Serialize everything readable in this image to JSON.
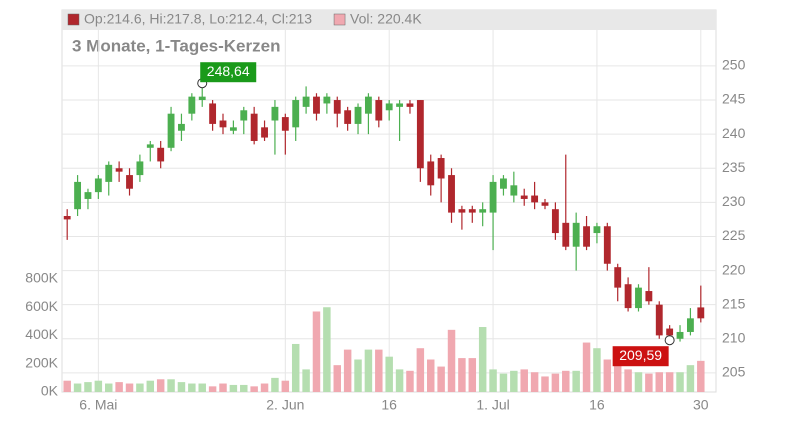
{
  "chart_data": {
    "type": "candlestick",
    "subtitle": "3 Monate, 1-Tages-Kerzen",
    "legend": [
      {
        "text": "Op:214.6, Hi:217.8, Lo:212.4, Cl:213",
        "color": "#b0272d"
      },
      {
        "text": "Vol: 220.4K",
        "color": "#f0a8b0"
      }
    ],
    "max_label": "248,64",
    "min_label": "209,59",
    "up_color": "#4caf50",
    "down_color": "#b0272d",
    "volume_up_color": "#b5deb0",
    "volume_down_color": "#f0a8b0",
    "categories": [
      null,
      null,
      null,
      "6. Mai",
      null,
      null,
      null,
      null,
      null,
      null,
      null,
      null,
      null,
      null,
      null,
      null,
      null,
      null,
      null,
      null,
      null,
      "2. Jun",
      null,
      null,
      null,
      null,
      null,
      null,
      null,
      null,
      null,
      "16",
      null,
      null,
      null,
      null,
      null,
      null,
      null,
      null,
      null,
      "1. Jul",
      null,
      null,
      null,
      null,
      null,
      null,
      null,
      null,
      null,
      "16",
      null,
      null,
      null,
      null,
      null,
      null,
      null,
      null,
      null,
      "30"
    ],
    "open": [
      228,
      229,
      230.5,
      231.5,
      233,
      235,
      234,
      234,
      238,
      238,
      238,
      240.5,
      243,
      245,
      244.5,
      242,
      240.5,
      242,
      243,
      241,
      242,
      242.5,
      241,
      244,
      245.5,
      244.5,
      245,
      243.5,
      241.5,
      243,
      245,
      243.5,
      244,
      244.5,
      245,
      236,
      236.5,
      234,
      229,
      229,
      228.5,
      228.5,
      232,
      231,
      231,
      231,
      230,
      229,
      227,
      223.5,
      226.5,
      225.5,
      226.5,
      220.5,
      218,
      214.5,
      217,
      215,
      211.5,
      210,
      211,
      214.6
    ],
    "high": [
      229,
      234,
      232,
      234,
      236,
      236,
      235,
      237,
      239,
      239,
      244,
      243,
      246,
      248.64,
      245,
      243,
      242,
      244,
      244,
      242,
      245,
      243,
      245.5,
      247,
      246,
      246,
      245.5,
      244,
      244.5,
      246,
      245.5,
      245,
      245,
      245,
      245,
      237,
      237,
      235,
      229.5,
      229.5,
      230,
      234,
      234,
      234.5,
      232,
      233,
      230.5,
      230,
      237,
      228.5,
      228,
      227,
      227,
      221,
      219,
      218,
      220.5,
      215.5,
      212,
      212,
      214.5,
      217.8
    ],
    "low": [
      224.5,
      228,
      229,
      230.5,
      231,
      233,
      231,
      233,
      236,
      235,
      237.5,
      239,
      242,
      244,
      240.5,
      240,
      240,
      240,
      238.5,
      239,
      237,
      237,
      239,
      243,
      242,
      243,
      241,
      240.5,
      240,
      240,
      241,
      242,
      239,
      243,
      233,
      231,
      230,
      227,
      226,
      227,
      226.5,
      223,
      231,
      230,
      229.5,
      229,
      229,
      224.5,
      223,
      220,
      223,
      224,
      220,
      215.5,
      214,
      214,
      215,
      210,
      209.5,
      209.59,
      210.5,
      212.4
    ],
    "close": [
      227.5,
      233,
      231.5,
      233.5,
      235.5,
      234.5,
      232,
      236,
      238.5,
      236,
      243,
      241.5,
      245.5,
      245.5,
      241.5,
      241,
      241,
      243.5,
      239,
      239.5,
      244,
      240.5,
      245,
      245.5,
      243,
      245.5,
      243,
      241.5,
      244,
      245.5,
      242,
      244.5,
      244.5,
      244,
      235,
      232.5,
      233.5,
      228.5,
      228.5,
      228.5,
      229,
      233,
      233.5,
      232.5,
      230.5,
      230,
      229.5,
      225.5,
      223.5,
      227,
      223.5,
      226.5,
      221,
      217.5,
      214.5,
      217.5,
      215.5,
      210.5,
      210.5,
      211,
      213,
      213
    ],
    "volume": [
      80,
      60,
      70,
      80,
      60,
      70,
      60,
      60,
      80,
      90,
      90,
      70,
      60,
      60,
      40,
      60,
      50,
      50,
      40,
      60,
      100,
      80,
      340,
      160,
      570,
      600,
      190,
      300,
      230,
      300,
      300,
      250,
      160,
      150,
      310,
      230,
      180,
      440,
      240,
      240,
      460,
      160,
      130,
      150,
      160,
      140,
      110,
      130,
      150,
      150,
      350,
      310,
      230,
      200,
      160,
      140,
      130,
      140,
      140,
      140,
      190,
      220.4
    ],
    "ylim": [
      202.2,
      258.2
    ],
    "yticks": [
      205,
      210,
      215,
      220,
      225,
      230,
      235,
      240,
      245,
      250
    ],
    "volume_lim": [
      0,
      2704
    ],
    "volume_ticks": [
      {
        "value": 0,
        "label": "0K"
      },
      {
        "value": 200,
        "label": "200K"
      },
      {
        "value": 400,
        "label": "400K"
      },
      {
        "value": 600,
        "label": "600K"
      },
      {
        "value": 800,
        "label": "800K"
      }
    ],
    "grid": true
  }
}
